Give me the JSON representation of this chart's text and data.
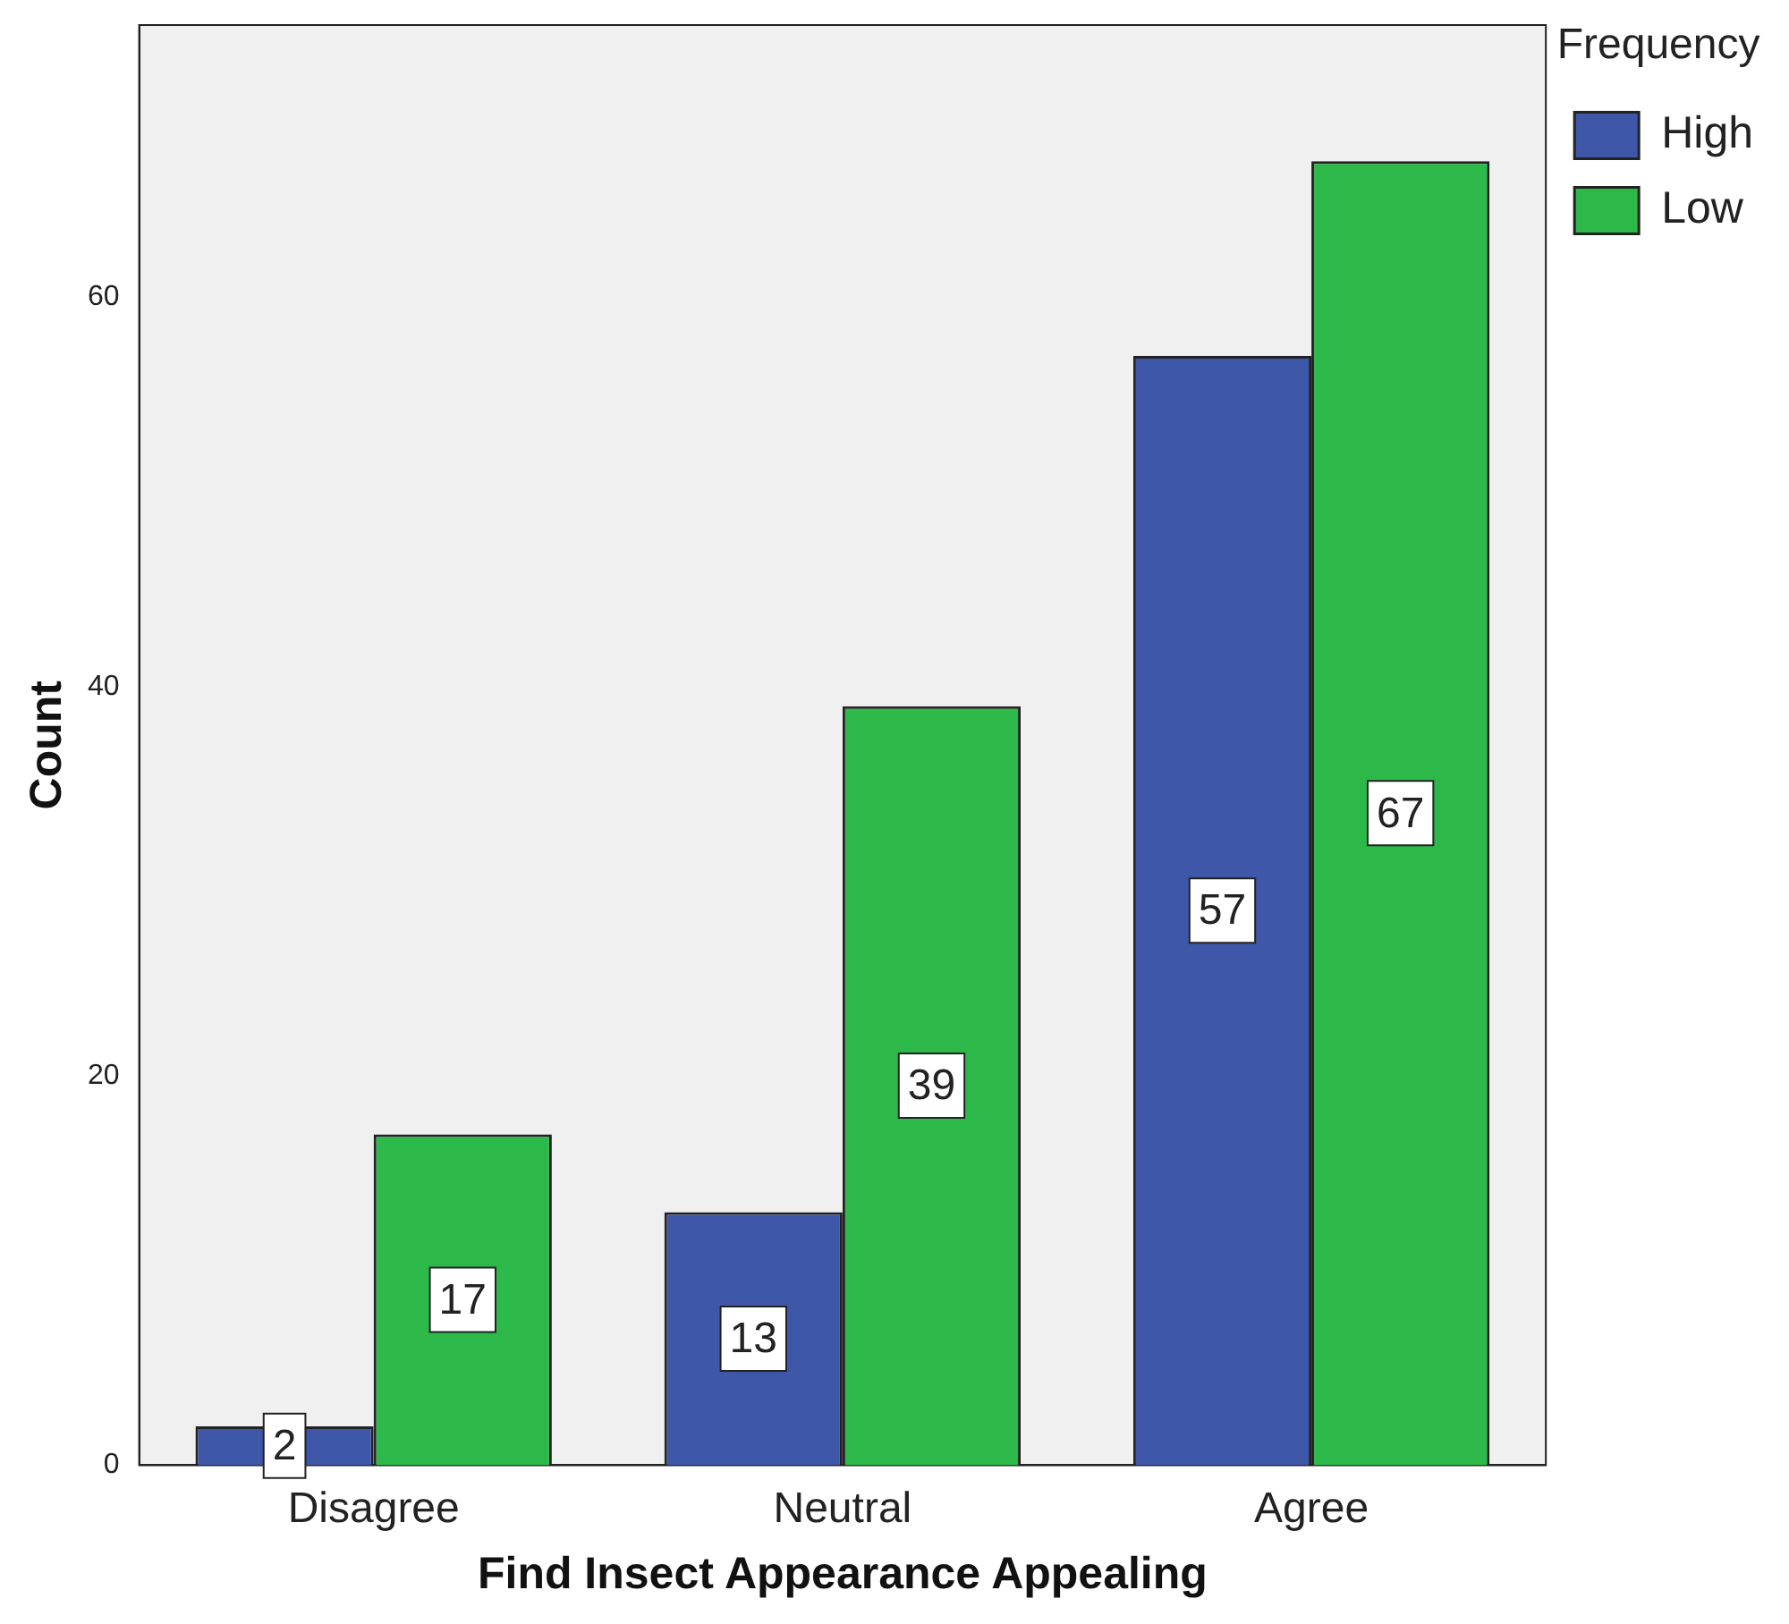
{
  "chart_data": {
    "type": "bar",
    "xlabel": "Find Insect Appearance Appealing",
    "ylabel": "Count",
    "legend_title": "Frequency",
    "legend": "top right",
    "categories": [
      "Disagree",
      "Neutral",
      "Agree"
    ],
    "series": [
      {
        "name": "High",
        "color": "#3f57a8",
        "values": [
          2,
          13,
          57
        ]
      },
      {
        "name": "Low",
        "color": "#2db84a",
        "values": [
          17,
          39,
          67
        ]
      }
    ],
    "ylim": [
      0,
      74
    ],
    "yticks": [
      0,
      20,
      40,
      60
    ],
    "grid": false,
    "data_labels": true
  }
}
